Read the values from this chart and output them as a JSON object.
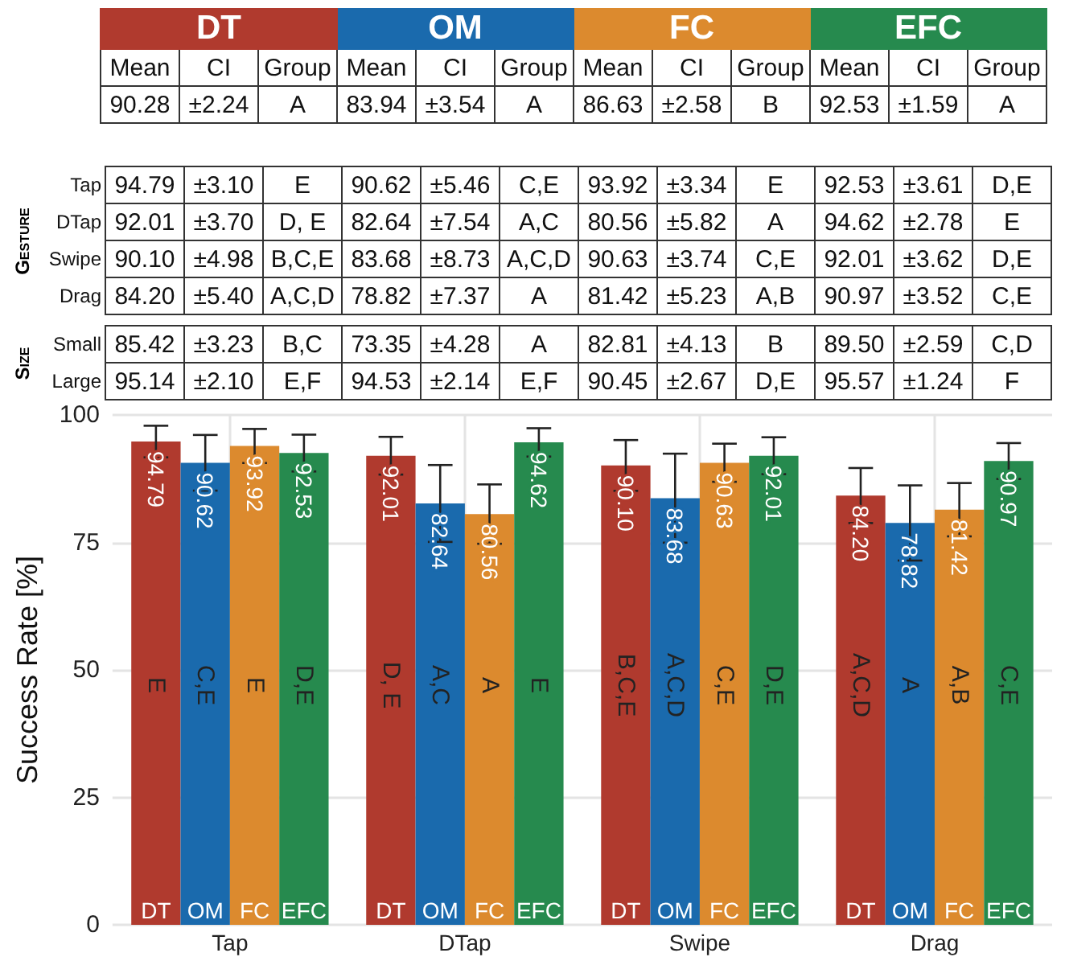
{
  "chart_data": [
    {
      "type": "other",
      "colors": [
        "#b03a2e",
        "#1a6aad",
        "#dc8a2e",
        "#268a4e"
      ],
      "annotations": [
        "DT",
        "OM",
        "FC",
        "EFC",
        "Mean",
        "CI",
        "Group",
        "Mean",
        "CI",
        "Group",
        "Mean",
        "CI",
        "Group",
        "Mean",
        "CI",
        "Group",
        "90.28",
        "±2.24",
        "A",
        "83.94",
        "±3.54",
        "A",
        "86.63",
        "±2.58",
        "B",
        "92.53",
        "±1.59",
        "A"
      ]
    },
    {
      "type": "other",
      "ylabel": "Gesture",
      "annotations": [
        "Tap",
        "94.79",
        "±3.10",
        "E",
        "90.62",
        "±5.46",
        "C,E",
        "93.92",
        "±3.34",
        "E",
        "92.53",
        "±3.61",
        "D,E",
        "DTap",
        "92.01",
        "±3.70",
        "D, E",
        "82.64",
        "±7.54",
        "A,C",
        "80.56",
        "±5.82",
        "A",
        "94.62",
        "±2.78",
        "E",
        "Swipe",
        "90.10",
        "±4.98",
        "B,C,E",
        "83.68",
        "±8.73",
        "A,C,D",
        "90.63",
        "±3.74",
        "C,E",
        "92.01",
        "±3.62",
        "D,E",
        "Drag",
        "84.20",
        "±5.40",
        "A,C,D",
        "78.82",
        "±7.37",
        "A",
        "81.42",
        "±5.23",
        "A,B",
        "90.97",
        "±3.52",
        "C,E"
      ]
    },
    {
      "type": "other",
      "ylabel": "Size",
      "annotations": [
        "Small",
        "85.42",
        "±3.23",
        "B,C",
        "73.35",
        "±4.28",
        "A",
        "82.81",
        "±4.13",
        "B",
        "89.50",
        "±2.59",
        "C,D",
        "Large",
        "95.14",
        "±2.10",
        "E,F",
        "94.53",
        "±2.14",
        "E,F",
        "90.45",
        "±2.67",
        "D,E",
        "95.57",
        "±1.24",
        "F"
      ]
    },
    {
      "type": "bar",
      "ylabel": "Success Rate [%]",
      "categories": [
        "Tap",
        "DTap",
        "Swipe",
        "Drag"
      ],
      "series": [
        {
          "name": "DT",
          "color": "#b03a2e",
          "values": [
            94.79,
            92.01,
            90.1,
            84.2
          ],
          "value_labels": [
            "94.79",
            "92.01",
            "90.10",
            "84.20"
          ],
          "errors": [
            3.1,
            3.7,
            4.98,
            5.4
          ]
        },
        {
          "name": "OM",
          "color": "#1a6aad",
          "values": [
            90.62,
            82.64,
            83.68,
            78.82
          ],
          "value_labels": [
            "90.62",
            "82.64",
            "83.68",
            "78.82"
          ],
          "errors": [
            5.46,
            7.54,
            8.73,
            7.37
          ]
        },
        {
          "name": "FC",
          "color": "#dc8a2e",
          "values": [
            93.92,
            80.56,
            90.63,
            81.42
          ],
          "value_labels": [
            "93.92",
            "80.56",
            "90.63",
            "81.42"
          ],
          "errors": [
            3.34,
            5.82,
            3.74,
            5.23
          ]
        },
        {
          "name": "EFC",
          "color": "#268a4e",
          "values": [
            92.53,
            94.62,
            92.01,
            90.97
          ],
          "value_labels": [
            "92.53",
            "94.62",
            "92.01",
            "90.97"
          ],
          "errors": [
            3.61,
            2.78,
            3.62,
            3.52
          ]
        }
      ],
      "annotations": [
        "E",
        "C,E",
        "E",
        "D,E",
        "D, E",
        "A,C",
        "A",
        "E",
        "B,C,E",
        "A,C,D",
        "C,E",
        "D,E",
        "A,C,D",
        "A",
        "A,B",
        "C,E"
      ],
      "ylim": [
        0,
        100
      ],
      "yticks": [
        0,
        25,
        50,
        75,
        100
      ],
      "grid": true
    }
  ]
}
